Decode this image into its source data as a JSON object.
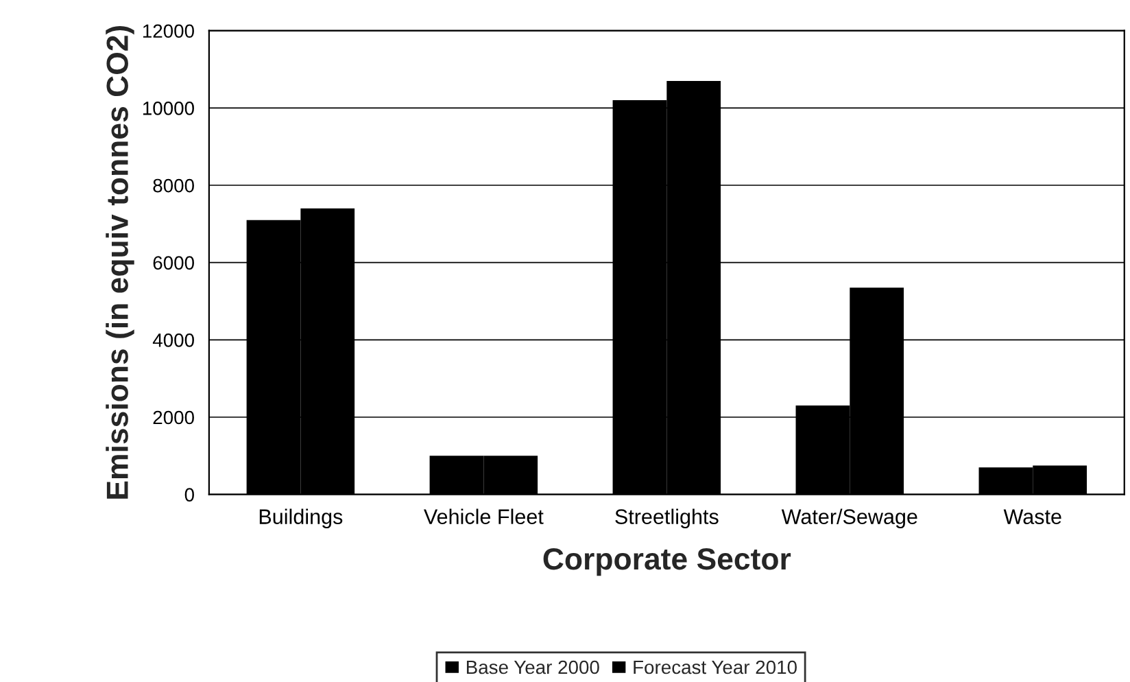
{
  "chart_data": {
    "type": "bar",
    "xlabel": "Corporate Sector",
    "ylabel": "Emissions (in equiv tonnes CO2)",
    "categories": [
      "Buildings",
      "Vehicle Fleet",
      "Streetlights",
      "Water/Sewage",
      "Waste"
    ],
    "series": [
      {
        "name": "Base Year 2000",
        "color": "#000000",
        "values": [
          7100,
          1000,
          10200,
          2300,
          700
        ]
      },
      {
        "name": "Forecast Year 2010",
        "color": "#000000",
        "values": [
          7400,
          1000,
          10700,
          5350,
          750
        ]
      }
    ],
    "ylim": [
      0,
      12000
    ],
    "yticks": [
      0,
      2000,
      4000,
      6000,
      8000,
      10000,
      12000
    ],
    "grid": "y",
    "legend": "bottom"
  }
}
